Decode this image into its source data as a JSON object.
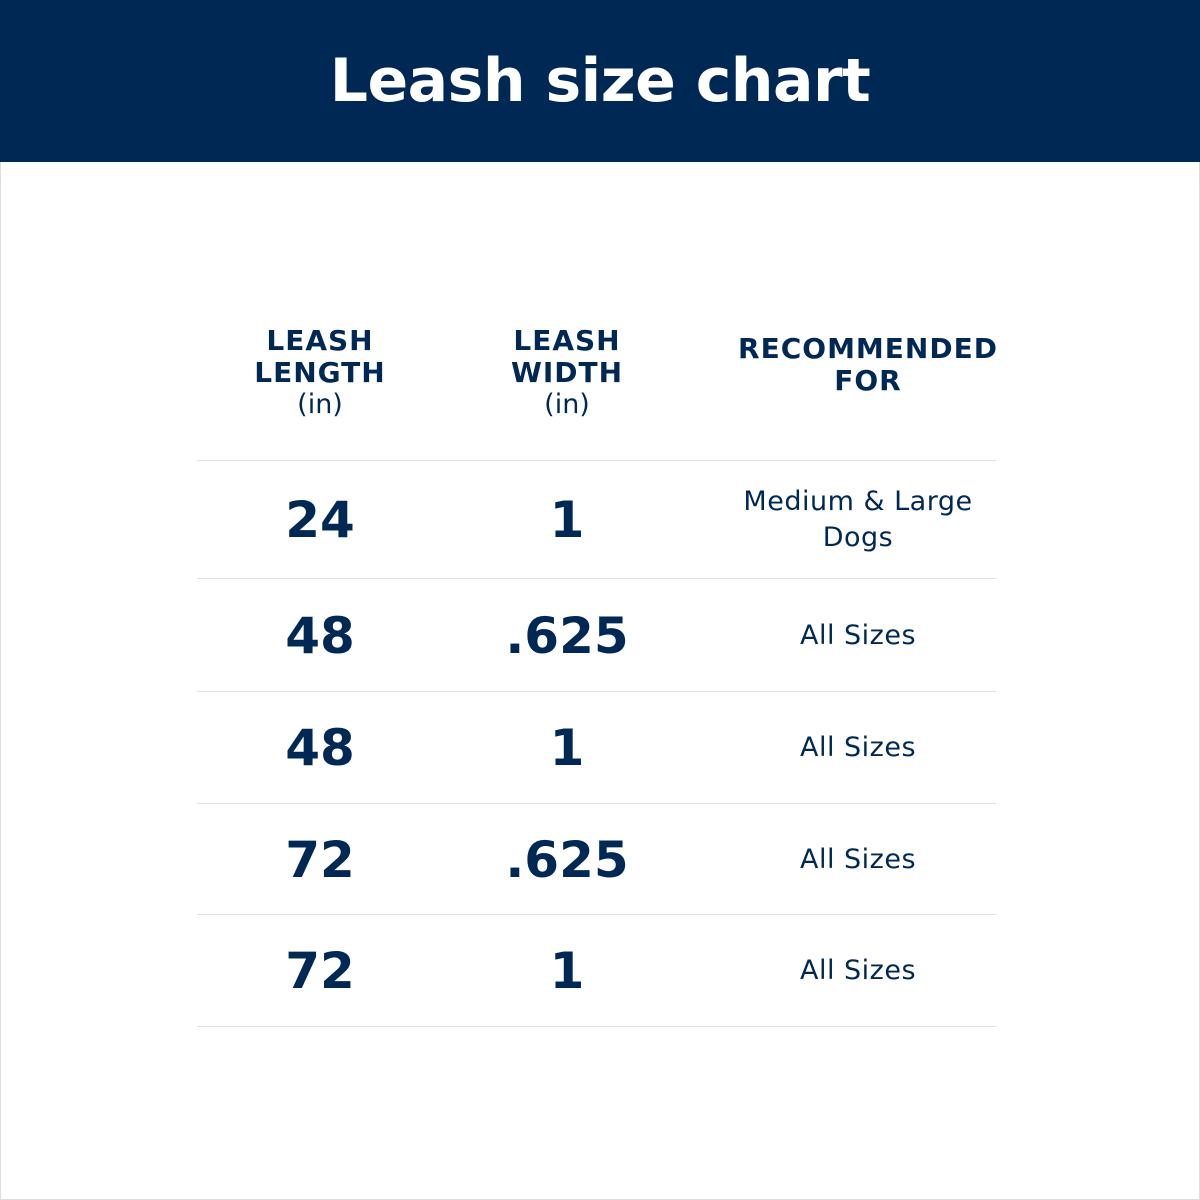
{
  "colors": {
    "header_bg": "#002855",
    "header_text": "#ffffff",
    "text": "#002855",
    "rule": "#d9e1ea"
  },
  "header": {
    "title": "Leash size chart"
  },
  "chart_data": {
    "type": "table",
    "title": "Leash size chart",
    "columns": [
      {
        "lines": [
          "LEASH",
          "LENGTH"
        ],
        "unit": "(in)"
      },
      {
        "lines": [
          "LEASH",
          "WIDTH"
        ],
        "unit": "(in)"
      },
      {
        "lines": [
          "RECOMMENDED",
          "FOR"
        ],
        "unit": ""
      }
    ],
    "rows": [
      {
        "length": "24",
        "width": "1",
        "recommended": "Medium & Large\nDogs"
      },
      {
        "length": "48",
        "width": ".625",
        "recommended": "All Sizes"
      },
      {
        "length": "48",
        "width": "1",
        "recommended": "All Sizes"
      },
      {
        "length": "72",
        "width": ".625",
        "recommended": "All Sizes"
      },
      {
        "length": "72",
        "width": "1",
        "recommended": "All Sizes"
      }
    ]
  }
}
